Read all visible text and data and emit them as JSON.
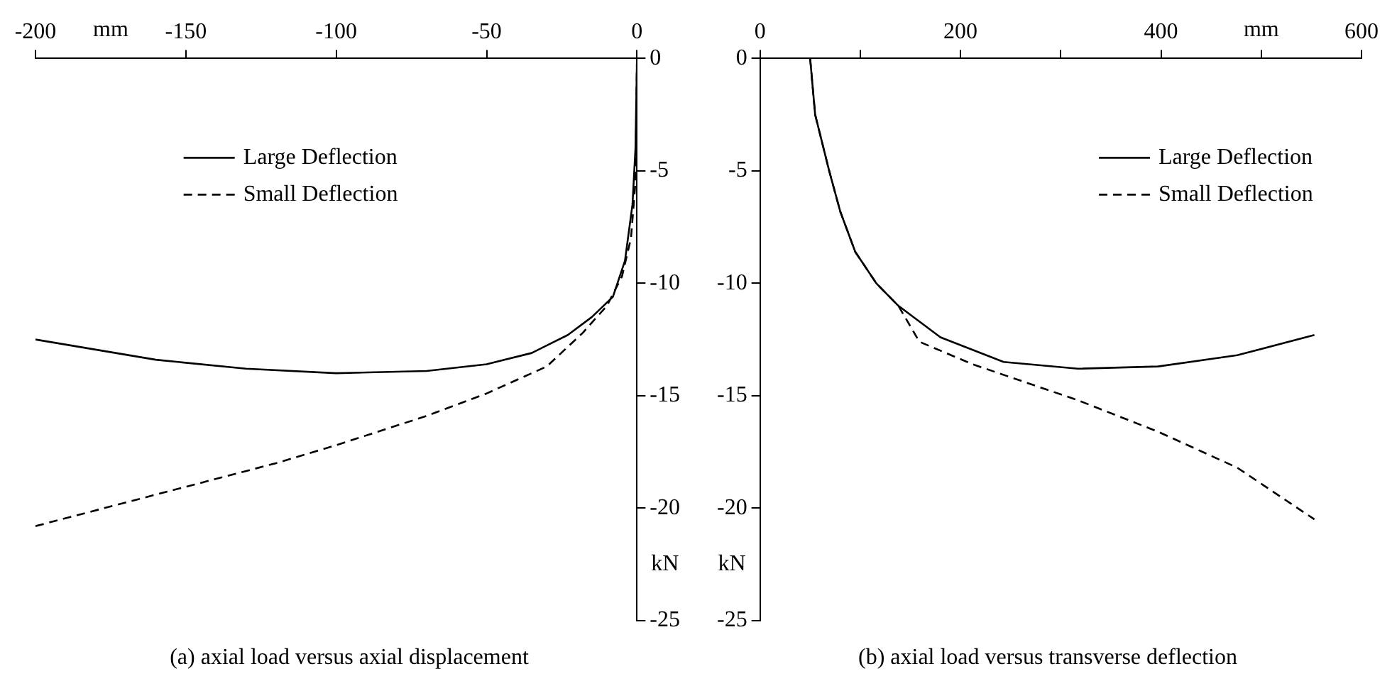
{
  "chart_data": [
    {
      "type": "line",
      "xlabel": "mm",
      "ylabel": "kN",
      "annotations": [
        "(a) axial load versus axial displacement"
      ],
      "xlim": [
        -200,
        0
      ],
      "xticks": [
        -200,
        -150,
        -100,
        -50,
        0
      ],
      "ylim": [
        -25,
        0
      ],
      "yticks": [
        0,
        -5,
        -10,
        -15,
        -20,
        -25
      ],
      "grid": false,
      "legend": "top",
      "marker": "none",
      "series": [
        {
          "name": "Large Deflection",
          "color": "#000000",
          "line_style": "solid",
          "x": [
            -200,
            -160,
            -130,
            -100,
            -70,
            -50,
            -35,
            -23,
            -15,
            -8,
            -4,
            -1.5,
            -0.5,
            0
          ],
          "values": [
            -12.5,
            -13.4,
            -13.8,
            -14.0,
            -13.9,
            -13.6,
            -13.1,
            -12.3,
            -11.5,
            -10.6,
            -9.0,
            -6.5,
            -4.0,
            0
          ]
        },
        {
          "name": "Small Deflection",
          "color": "#000000",
          "line_style": "dashed",
          "x": [
            -200,
            -160,
            -120,
            -100,
            -70,
            -50,
            -30,
            -18,
            -10,
            -5,
            -2,
            -0.5,
            0
          ],
          "values": [
            -20.8,
            -19.4,
            -18.0,
            -17.2,
            -15.9,
            -14.9,
            -13.7,
            -12.2,
            -11.0,
            -9.7,
            -8.0,
            -5.5,
            0
          ]
        }
      ]
    },
    {
      "type": "line",
      "xlabel": "mm",
      "ylabel": "kN",
      "annotations": [
        "(b)  axial load versus transverse deflection"
      ],
      "xlim": [
        0,
        600
      ],
      "xticks": [
        0,
        {
          "value": 100,
          "label": null
        },
        200,
        {
          "value": 300,
          "label": null
        },
        400,
        {
          "value": 500,
          "label": null
        },
        600
      ],
      "ylim": [
        -25,
        0
      ],
      "yticks": [
        0,
        -5,
        -10,
        -15,
        -20,
        -25
      ],
      "grid": false,
      "legend": "top right",
      "marker": "none",
      "series": [
        {
          "name": "Large Deflection",
          "color": "#000000",
          "line_style": "solid",
          "x": [
            50,
            55,
            69,
            80,
            95,
            116,
            138,
            180,
            243,
            317,
            397,
            476,
            553
          ],
          "values": [
            0,
            -2.5,
            -5.0,
            -6.8,
            -8.6,
            -10.0,
            -11.0,
            -12.4,
            -13.5,
            -13.8,
            -13.7,
            -13.2,
            -12.3
          ]
        },
        {
          "name": "Small Deflection",
          "color": "#000000",
          "line_style": "dashed",
          "x": [
            50,
            55,
            69,
            80,
            95,
            116,
            138,
            159,
            212,
            317,
            397,
            476,
            553
          ],
          "values": [
            0,
            -2.5,
            -5.0,
            -6.8,
            -8.6,
            -10.0,
            -11.0,
            -12.6,
            -13.6,
            -15.2,
            -16.6,
            -18.2,
            -20.5
          ]
        }
      ]
    }
  ]
}
